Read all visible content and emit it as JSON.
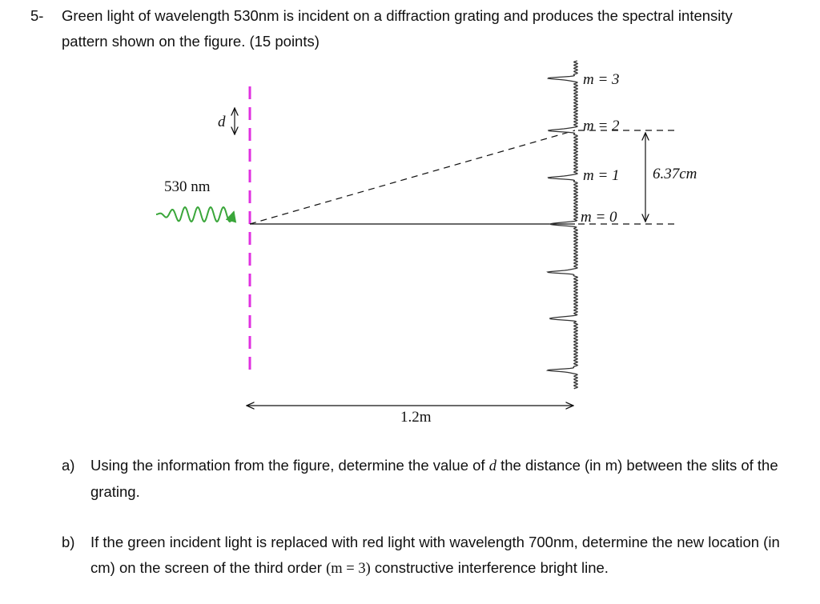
{
  "question": {
    "number": "5-",
    "text": "Green light of wavelength 530nm is incident on a diffraction grating and produces the spectral intensity pattern shown on the figure. (15 points)"
  },
  "figure": {
    "d": "d",
    "wavelength": "530 nm",
    "orders": [
      "m = 3",
      "m = 2",
      "m = 1",
      "m = 0"
    ],
    "height": "6.37cm",
    "distance": "1.2m"
  },
  "parts": [
    {
      "label": "a)",
      "text": [
        "Using the information from the figure, determine the value of ",
        "d",
        " the distance (in m) between the slits of the grating."
      ]
    },
    {
      "label": "b)",
      "text": [
        "If the green incident light is replaced with red light with wavelength 700nm, determine the new location (in cm) on the screen of the third order ",
        "(m = 3)",
        " constructive interference bright line."
      ]
    }
  ]
}
